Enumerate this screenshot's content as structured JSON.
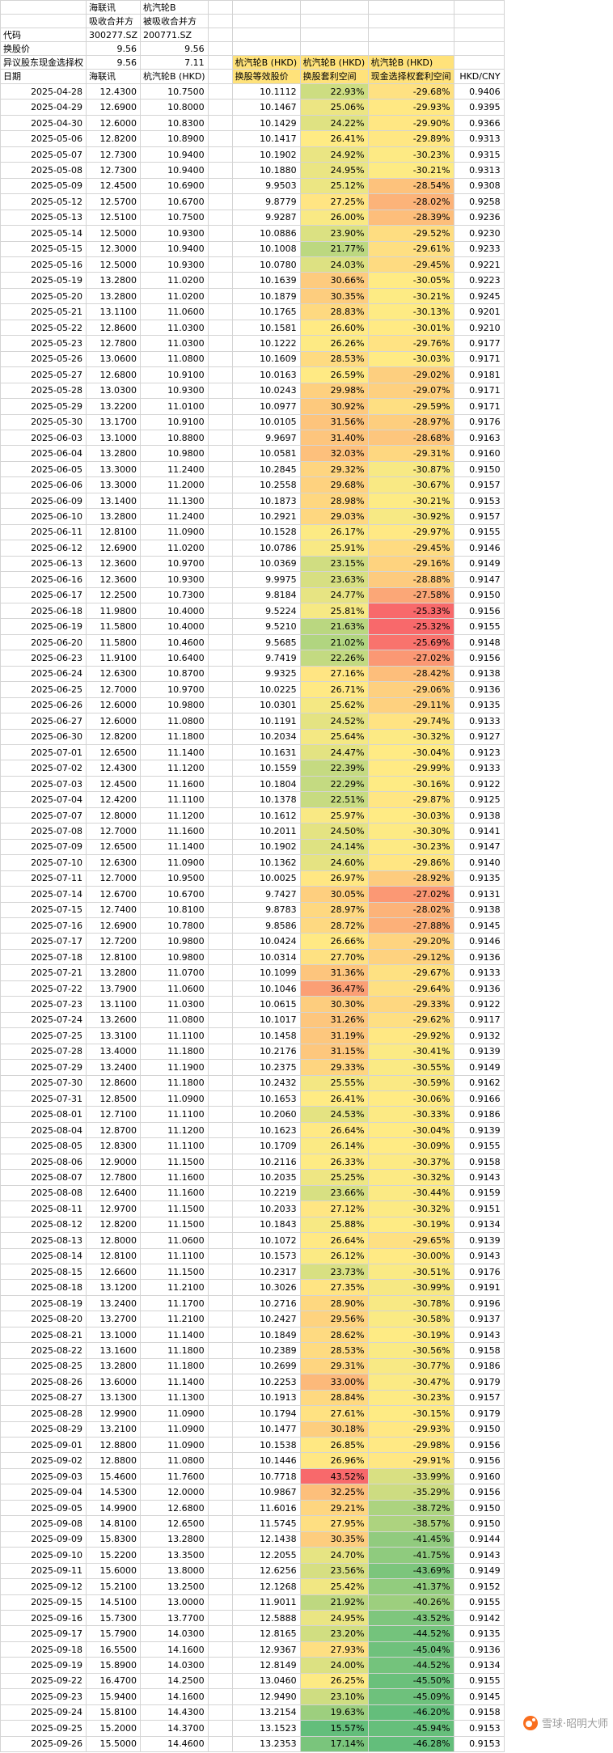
{
  "info": {
    "r1": {
      "a": "",
      "b": "海联讯",
      "c": "杭汽轮B"
    },
    "r2": {
      "a": "",
      "b": "吸收合并方",
      "c": "被吸收合并方"
    },
    "r3": {
      "a": "代码",
      "b": "300277.SZ",
      "c": "200771.SZ"
    },
    "r4": {
      "a": "换股价",
      "b": "9.56",
      "c": "9.56"
    },
    "r5": {
      "a": "异议股东现金选择权",
      "b": "9.56",
      "c": "7.11"
    }
  },
  "header": {
    "group_label": "杭汽轮B (HKD)",
    "cols": [
      "日期",
      "海联讯",
      "杭汽轮B (HKD)",
      "换股等效股价",
      "换股套利空间",
      "现金选择权套利空间",
      "HKD/CNY"
    ]
  },
  "colors": {
    "header_fill": "#FFE27A",
    "scale_min_green": "#63BE7B",
    "scale_mid_yellow": "#FFEB84",
    "scale_max_red": "#F8696B",
    "gridline": "#d4d4d4"
  },
  "watermark": {
    "icon": "xueqiu-logo",
    "text": "雪球·昭明大师",
    "logo_color": "#F96E1E"
  },
  "table": {
    "rows": [
      [
        "2025-04-28",
        "12.4300",
        "10.7500",
        "10.1112",
        "22.93%",
        "-29.68%",
        "0.9406"
      ],
      [
        "2025-04-29",
        "12.6900",
        "10.8000",
        "10.1467",
        "25.06%",
        "-29.93%",
        "0.9395"
      ],
      [
        "2025-04-30",
        "12.6000",
        "10.8300",
        "10.1429",
        "24.22%",
        "-29.90%",
        "0.9366"
      ],
      [
        "2025-05-06",
        "12.8200",
        "10.8900",
        "10.1417",
        "26.41%",
        "-29.89%",
        "0.9313"
      ],
      [
        "2025-05-07",
        "12.7300",
        "10.9400",
        "10.1902",
        "24.92%",
        "-30.23%",
        "0.9315"
      ],
      [
        "2025-05-08",
        "12.7300",
        "10.9400",
        "10.1880",
        "24.95%",
        "-30.21%",
        "0.9313"
      ],
      [
        "2025-05-09",
        "12.4500",
        "10.6900",
        "9.9503",
        "25.12%",
        "-28.54%",
        "0.9308"
      ],
      [
        "2025-05-12",
        "12.5700",
        "10.6700",
        "9.8779",
        "27.25%",
        "-28.02%",
        "0.9258"
      ],
      [
        "2025-05-13",
        "12.5100",
        "10.7500",
        "9.9287",
        "26.00%",
        "-28.39%",
        "0.9236"
      ],
      [
        "2025-05-14",
        "12.5000",
        "10.9300",
        "10.0886",
        "23.90%",
        "-29.52%",
        "0.9230"
      ],
      [
        "2025-05-15",
        "12.3000",
        "10.9400",
        "10.1008",
        "21.77%",
        "-29.61%",
        "0.9233"
      ],
      [
        "2025-05-16",
        "12.5000",
        "10.9300",
        "10.0780",
        "24.03%",
        "-29.45%",
        "0.9221"
      ],
      [
        "2025-05-19",
        "13.2800",
        "11.0200",
        "10.1639",
        "30.66%",
        "-30.05%",
        "0.9223"
      ],
      [
        "2025-05-20",
        "13.2800",
        "11.0200",
        "10.1879",
        "30.35%",
        "-30.21%",
        "0.9245"
      ],
      [
        "2025-05-21",
        "13.1100",
        "11.0600",
        "10.1765",
        "28.83%",
        "-30.13%",
        "0.9201"
      ],
      [
        "2025-05-22",
        "12.8600",
        "11.0300",
        "10.1581",
        "26.60%",
        "-30.01%",
        "0.9210"
      ],
      [
        "2025-05-23",
        "12.7800",
        "11.0300",
        "10.1222",
        "26.26%",
        "-29.76%",
        "0.9177"
      ],
      [
        "2025-05-26",
        "13.0600",
        "11.0800",
        "10.1609",
        "28.53%",
        "-30.03%",
        "0.9171"
      ],
      [
        "2025-05-27",
        "12.6800",
        "10.9100",
        "10.0163",
        "26.59%",
        "-29.02%",
        "0.9181"
      ],
      [
        "2025-05-28",
        "13.0300",
        "10.9300",
        "10.0243",
        "29.98%",
        "-29.07%",
        "0.9171"
      ],
      [
        "2025-05-29",
        "13.2200",
        "11.0100",
        "10.0977",
        "30.92%",
        "-29.59%",
        "0.9171"
      ],
      [
        "2025-05-30",
        "13.1700",
        "10.9100",
        "10.0105",
        "31.56%",
        "-28.97%",
        "0.9176"
      ],
      [
        "2025-06-03",
        "13.1000",
        "10.8800",
        "9.9697",
        "31.40%",
        "-28.68%",
        "0.9163"
      ],
      [
        "2025-06-04",
        "13.2800",
        "10.9800",
        "10.0581",
        "32.03%",
        "-29.31%",
        "0.9160"
      ],
      [
        "2025-06-05",
        "13.3000",
        "11.2400",
        "10.2845",
        "29.32%",
        "-30.87%",
        "0.9150"
      ],
      [
        "2025-06-06",
        "13.3000",
        "11.2000",
        "10.2558",
        "29.68%",
        "-30.67%",
        "0.9157"
      ],
      [
        "2025-06-09",
        "13.1400",
        "11.1300",
        "10.1873",
        "28.98%",
        "-30.21%",
        "0.9153"
      ],
      [
        "2025-06-10",
        "13.2800",
        "11.2400",
        "10.2921",
        "29.03%",
        "-30.92%",
        "0.9157"
      ],
      [
        "2025-06-11",
        "12.8100",
        "11.0900",
        "10.1528",
        "26.17%",
        "-29.97%",
        "0.9155"
      ],
      [
        "2025-06-12",
        "12.6900",
        "11.0200",
        "10.0786",
        "25.91%",
        "-29.45%",
        "0.9146"
      ],
      [
        "2025-06-13",
        "12.3600",
        "10.9700",
        "10.0369",
        "23.15%",
        "-29.16%",
        "0.9149"
      ],
      [
        "2025-06-16",
        "12.3600",
        "10.9300",
        "9.9975",
        "23.63%",
        "-28.88%",
        "0.9147"
      ],
      [
        "2025-06-17",
        "12.2500",
        "10.7300",
        "9.8184",
        "24.77%",
        "-27.58%",
        "0.9150"
      ],
      [
        "2025-06-18",
        "11.9800",
        "10.4000",
        "9.5224",
        "25.81%",
        "-25.33%",
        "0.9156"
      ],
      [
        "2025-06-19",
        "11.5800",
        "10.4000",
        "9.5210",
        "21.63%",
        "-25.32%",
        "0.9155"
      ],
      [
        "2025-06-20",
        "11.5800",
        "10.4600",
        "9.5685",
        "21.02%",
        "-25.69%",
        "0.9148"
      ],
      [
        "2025-06-23",
        "11.9100",
        "10.6400",
        "9.7419",
        "22.26%",
        "-27.02%",
        "0.9156"
      ],
      [
        "2025-06-24",
        "12.6300",
        "10.8700",
        "9.9325",
        "27.16%",
        "-28.42%",
        "0.9138"
      ],
      [
        "2025-06-25",
        "12.7000",
        "10.9700",
        "10.0225",
        "26.71%",
        "-29.06%",
        "0.9136"
      ],
      [
        "2025-06-26",
        "12.6000",
        "10.9800",
        "10.0301",
        "25.62%",
        "-29.11%",
        "0.9135"
      ],
      [
        "2025-06-27",
        "12.6000",
        "11.0800",
        "10.1191",
        "24.52%",
        "-29.74%",
        "0.9133"
      ],
      [
        "2025-06-30",
        "12.8200",
        "11.1800",
        "10.2034",
        "25.64%",
        "-30.32%",
        "0.9127"
      ],
      [
        "2025-07-01",
        "12.6500",
        "11.1400",
        "10.1631",
        "24.47%",
        "-30.04%",
        "0.9123"
      ],
      [
        "2025-07-02",
        "12.4300",
        "11.1200",
        "10.1559",
        "22.39%",
        "-29.99%",
        "0.9133"
      ],
      [
        "2025-07-03",
        "12.4500",
        "11.1600",
        "10.1804",
        "22.29%",
        "-30.16%",
        "0.9122"
      ],
      [
        "2025-07-04",
        "12.4200",
        "11.1100",
        "10.1378",
        "22.51%",
        "-29.87%",
        "0.9125"
      ],
      [
        "2025-07-07",
        "12.8000",
        "11.1200",
        "10.1612",
        "25.97%",
        "-30.03%",
        "0.9138"
      ],
      [
        "2025-07-08",
        "12.7000",
        "11.1600",
        "10.2011",
        "24.50%",
        "-30.30%",
        "0.9141"
      ],
      [
        "2025-07-09",
        "12.6500",
        "11.1400",
        "10.1902",
        "24.14%",
        "-30.23%",
        "0.9147"
      ],
      [
        "2025-07-10",
        "12.6300",
        "11.0900",
        "10.1362",
        "24.60%",
        "-29.86%",
        "0.9140"
      ],
      [
        "2025-07-11",
        "12.7000",
        "10.9500",
        "10.0025",
        "26.97%",
        "-28.92%",
        "0.9135"
      ],
      [
        "2025-07-14",
        "12.6700",
        "10.6700",
        "9.7427",
        "30.05%",
        "-27.02%",
        "0.9131"
      ],
      [
        "2025-07-15",
        "12.7400",
        "10.8100",
        "9.8783",
        "28.97%",
        "-28.02%",
        "0.9138"
      ],
      [
        "2025-07-16",
        "12.6900",
        "10.7800",
        "9.8586",
        "28.72%",
        "-27.88%",
        "0.9145"
      ],
      [
        "2025-07-17",
        "12.7200",
        "10.9800",
        "10.0424",
        "26.66%",
        "-29.20%",
        "0.9146"
      ],
      [
        "2025-07-18",
        "12.8100",
        "10.9800",
        "10.0314",
        "27.70%",
        "-29.12%",
        "0.9136"
      ],
      [
        "2025-07-21",
        "13.2800",
        "11.0700",
        "10.1099",
        "31.36%",
        "-29.67%",
        "0.9133"
      ],
      [
        "2025-07-22",
        "13.7900",
        "11.0600",
        "10.1046",
        "36.47%",
        "-29.64%",
        "0.9136"
      ],
      [
        "2025-07-23",
        "13.1100",
        "11.0300",
        "10.0615",
        "30.30%",
        "-29.33%",
        "0.9122"
      ],
      [
        "2025-07-24",
        "13.2600",
        "11.0800",
        "10.1017",
        "31.26%",
        "-29.62%",
        "0.9117"
      ],
      [
        "2025-07-25",
        "13.3100",
        "11.1100",
        "10.1458",
        "31.19%",
        "-29.92%",
        "0.9132"
      ],
      [
        "2025-07-28",
        "13.4000",
        "11.1800",
        "10.2176",
        "31.15%",
        "-30.41%",
        "0.9139"
      ],
      [
        "2025-07-29",
        "13.2400",
        "11.1900",
        "10.2375",
        "29.33%",
        "-30.55%",
        "0.9149"
      ],
      [
        "2025-07-30",
        "12.8600",
        "11.1800",
        "10.2432",
        "25.55%",
        "-30.59%",
        "0.9162"
      ],
      [
        "2025-07-31",
        "12.8500",
        "11.0900",
        "10.1653",
        "26.41%",
        "-30.06%",
        "0.9166"
      ],
      [
        "2025-08-01",
        "12.7100",
        "11.1100",
        "10.2060",
        "24.53%",
        "-30.33%",
        "0.9186"
      ],
      [
        "2025-08-04",
        "12.8700",
        "11.1200",
        "10.1623",
        "26.64%",
        "-30.04%",
        "0.9139"
      ],
      [
        "2025-08-05",
        "12.8300",
        "11.1100",
        "10.1709",
        "26.14%",
        "-30.09%",
        "0.9155"
      ],
      [
        "2025-08-06",
        "12.9000",
        "11.1500",
        "10.2116",
        "26.33%",
        "-30.37%",
        "0.9158"
      ],
      [
        "2025-08-07",
        "12.7800",
        "11.1600",
        "10.2035",
        "25.25%",
        "-30.32%",
        "0.9143"
      ],
      [
        "2025-08-08",
        "12.6400",
        "11.1600",
        "10.2219",
        "23.66%",
        "-30.44%",
        "0.9159"
      ],
      [
        "2025-08-11",
        "12.9700",
        "11.1500",
        "10.2033",
        "27.12%",
        "-30.32%",
        "0.9151"
      ],
      [
        "2025-08-12",
        "12.8200",
        "11.1500",
        "10.1843",
        "25.88%",
        "-30.19%",
        "0.9134"
      ],
      [
        "2025-08-13",
        "12.8000",
        "11.0600",
        "10.1072",
        "26.64%",
        "-29.65%",
        "0.9139"
      ],
      [
        "2025-08-14",
        "12.8100",
        "11.1100",
        "10.1573",
        "26.12%",
        "-30.00%",
        "0.9143"
      ],
      [
        "2025-08-15",
        "12.6600",
        "11.1500",
        "10.2317",
        "23.73%",
        "-30.51%",
        "0.9176"
      ],
      [
        "2025-08-18",
        "13.1200",
        "11.2100",
        "10.3026",
        "27.35%",
        "-30.99%",
        "0.9191"
      ],
      [
        "2025-08-19",
        "13.2400",
        "11.1700",
        "10.2716",
        "28.90%",
        "-30.78%",
        "0.9196"
      ],
      [
        "2025-08-20",
        "13.2700",
        "11.2100",
        "10.2427",
        "29.56%",
        "-30.58%",
        "0.9137"
      ],
      [
        "2025-08-21",
        "13.1000",
        "11.1400",
        "10.1849",
        "28.62%",
        "-30.19%",
        "0.9143"
      ],
      [
        "2025-08-22",
        "13.1600",
        "11.1800",
        "10.2389",
        "28.53%",
        "-30.56%",
        "0.9158"
      ],
      [
        "2025-08-25",
        "13.2800",
        "11.1800",
        "10.2699",
        "29.31%",
        "-30.77%",
        "0.9186"
      ],
      [
        "2025-08-26",
        "13.6000",
        "11.1400",
        "10.2253",
        "33.00%",
        "-30.47%",
        "0.9179"
      ],
      [
        "2025-08-27",
        "13.1300",
        "11.1300",
        "10.1913",
        "28.84%",
        "-30.23%",
        "0.9157"
      ],
      [
        "2025-08-28",
        "12.9900",
        "11.0900",
        "10.1794",
        "27.61%",
        "-30.15%",
        "0.9179"
      ],
      [
        "2025-08-29",
        "13.2100",
        "11.0900",
        "10.1477",
        "30.18%",
        "-29.93%",
        "0.9150"
      ],
      [
        "2025-09-01",
        "12.8800",
        "11.0900",
        "10.1538",
        "26.85%",
        "-29.98%",
        "0.9156"
      ],
      [
        "2025-09-02",
        "12.8800",
        "11.0800",
        "10.1446",
        "26.96%",
        "-29.91%",
        "0.9156"
      ],
      [
        "2025-09-03",
        "15.4600",
        "11.7600",
        "10.7718",
        "43.52%",
        "-33.99%",
        "0.9160"
      ],
      [
        "2025-09-04",
        "14.5300",
        "12.0000",
        "10.9867",
        "32.25%",
        "-35.29%",
        "0.9156"
      ],
      [
        "2025-09-05",
        "14.9900",
        "12.6800",
        "11.6016",
        "29.21%",
        "-38.72%",
        "0.9150"
      ],
      [
        "2025-09-08",
        "14.8100",
        "12.6500",
        "11.5745",
        "27.95%",
        "-38.57%",
        "0.9150"
      ],
      [
        "2025-09-09",
        "15.8300",
        "13.2800",
        "12.1438",
        "30.35%",
        "-41.45%",
        "0.9144"
      ],
      [
        "2025-09-10",
        "15.2200",
        "13.3500",
        "12.2055",
        "24.70%",
        "-41.75%",
        "0.9143"
      ],
      [
        "2025-09-11",
        "15.6000",
        "13.8000",
        "12.6256",
        "23.56%",
        "-43.69%",
        "0.9149"
      ],
      [
        "2025-09-12",
        "15.2100",
        "13.2500",
        "12.1268",
        "25.42%",
        "-41.37%",
        "0.9152"
      ],
      [
        "2025-09-15",
        "14.5100",
        "13.0000",
        "11.9011",
        "21.92%",
        "-40.26%",
        "0.9155"
      ],
      [
        "2025-09-16",
        "15.7300",
        "13.7700",
        "12.5888",
        "24.95%",
        "-43.52%",
        "0.9142"
      ],
      [
        "2025-09-17",
        "15.7900",
        "14.0300",
        "12.8165",
        "23.20%",
        "-44.52%",
        "0.9135"
      ],
      [
        "2025-09-18",
        "16.5500",
        "14.1600",
        "12.9367",
        "27.93%",
        "-45.04%",
        "0.9136"
      ],
      [
        "2025-09-19",
        "15.8900",
        "14.0300",
        "12.8149",
        "24.00%",
        "-44.52%",
        "0.9134"
      ],
      [
        "2025-09-22",
        "16.4700",
        "14.2500",
        "13.0460",
        "26.25%",
        "-45.50%",
        "0.9155"
      ],
      [
        "2025-09-23",
        "15.9400",
        "14.1600",
        "12.9490",
        "23.10%",
        "-45.09%",
        "0.9145"
      ],
      [
        "2025-09-24",
        "15.8100",
        "14.4300",
        "13.2154",
        "19.63%",
        "-46.20%",
        "0.9158"
      ],
      [
        "2025-09-25",
        "15.2000",
        "14.3700",
        "13.1523",
        "15.57%",
        "-45.94%",
        "0.9153"
      ],
      [
        "2025-09-26",
        "15.5000",
        "14.4600",
        "13.2353",
        "17.14%",
        "-46.28%",
        "0.9153"
      ]
    ]
  }
}
